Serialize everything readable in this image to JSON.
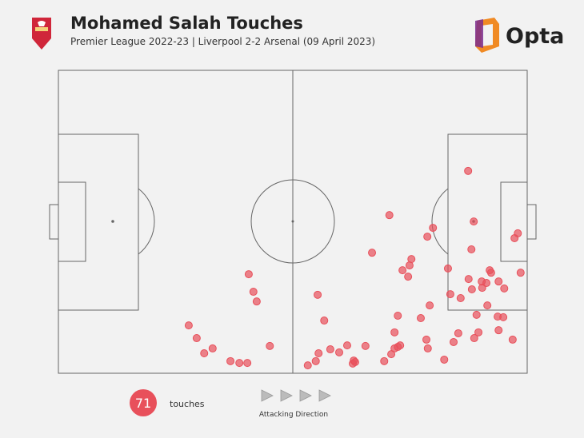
{
  "chart_data": {
    "type": "scatter",
    "title": "Mohamed Salah Touches",
    "subtitle": "Premier League 2022-23 | Liverpool 2-2 Arsenal (09 April 2023)",
    "brand": "Opta",
    "touch_count": 71,
    "touch_label": "touches",
    "direction_label": "Attacking Direction",
    "color": "#e8505b",
    "xlim": [
      0,
      100
    ],
    "ylim": [
      0,
      100
    ],
    "x": [
      87.4,
      70.6,
      88.6,
      79.9,
      78.7,
      98.0,
      97.3,
      88.1,
      66.9,
      75.3,
      74.9,
      73.4,
      74.6,
      83.1,
      92.0,
      92.3,
      98.6,
      87.5,
      90.3,
      91.3,
      93.9,
      88.2,
      90.4,
      95.1,
      40.6,
      41.6,
      42.3,
      55.3,
      83.6,
      85.8,
      79.2,
      91.5,
      56.7,
      72.4,
      77.3,
      89.2,
      93.7,
      94.9,
      27.8,
      29.5,
      32.9,
      31.1,
      45.1,
      71.7,
      78.5,
      85.3,
      89.6,
      93.9,
      96.9,
      84.3,
      88.7,
      72.9,
      72.4,
      71.7,
      78.8,
      65.5,
      61.6,
      58.0,
      55.5,
      59.9,
      71.0,
      69.5,
      63.0,
      63.3,
      62.8,
      54.9,
      53.2,
      82.3,
      36.7,
      38.6,
      40.3
    ],
    "y": [
      66.8,
      52.2,
      50.1,
      48.0,
      45.1,
      46.2,
      44.6,
      40.9,
      39.8,
      37.7,
      35.6,
      34.0,
      31.9,
      34.6,
      34.0,
      33.2,
      33.2,
      31.1,
      30.3,
      29.8,
      30.3,
      27.7,
      28.2,
      28.0,
      32.7,
      26.9,
      23.7,
      25.9,
      26.1,
      24.8,
      22.4,
      22.4,
      17.4,
      19.0,
      18.2,
      19.3,
      18.7,
      18.5,
      15.8,
      11.6,
      8.2,
      6.6,
      9.0,
      13.5,
      11.1,
      13.2,
      13.5,
      14.2,
      11.1,
      10.3,
      11.6,
      9.2,
      8.7,
      8.2,
      8.2,
      9.0,
      9.2,
      7.9,
      6.6,
      6.9,
      6.3,
      4.0,
      4.2,
      3.7,
      3.2,
      4.0,
      2.6,
      4.5,
      4.0,
      3.4,
      3.4
    ]
  }
}
